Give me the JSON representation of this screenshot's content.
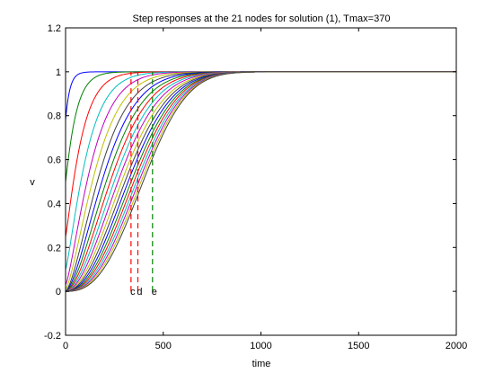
{
  "chart_data": {
    "type": "line",
    "title": "Step responses at the 21 nodes for solution (1), Tmax=370",
    "xlabel": "time",
    "ylabel": "v",
    "xlim": [
      0,
      2000
    ],
    "ylim": [
      -0.2,
      1.2
    ],
    "xticks": [
      0,
      500,
      1000,
      1500,
      2000
    ],
    "xtick_labels": [
      "0",
      "500",
      "1000",
      "1500",
      "2000"
    ],
    "yticks": [
      -0.2,
      0,
      0.2,
      0.4,
      0.6,
      0.8,
      1,
      1.2
    ],
    "ytick_labels": [
      "-0.2",
      "0",
      "0.2",
      "0.4",
      "0.6",
      "0.8",
      "1",
      "1.2"
    ],
    "grid": false,
    "series_count": 21,
    "series_colors": [
      "#0000ff",
      "#008000",
      "#ff0000",
      "#00bfbf",
      "#bf00bf",
      "#bfbf00",
      "#404040"
    ],
    "series_time_constants": [
      22,
      55,
      88,
      120,
      150,
      180,
      208,
      235,
      260,
      283,
      305,
      326,
      346,
      364,
      381,
      397,
      411,
      424,
      436,
      447,
      457
    ],
    "series_start_values": [
      0.78,
      0.5,
      0.25,
      0.1,
      0.03,
      0.01,
      0,
      0,
      0,
      0,
      0,
      0,
      0,
      0,
      0,
      0,
      0,
      0,
      0,
      0,
      0
    ],
    "markers": [
      {
        "label": "c",
        "x": 335,
        "color": "#ff0000"
      },
      {
        "label": "d",
        "x": 370,
        "color": "#ff0000"
      },
      {
        "label": "e",
        "x": 445,
        "color": "#008000"
      }
    ],
    "marker_line_range": [
      0,
      1
    ]
  }
}
